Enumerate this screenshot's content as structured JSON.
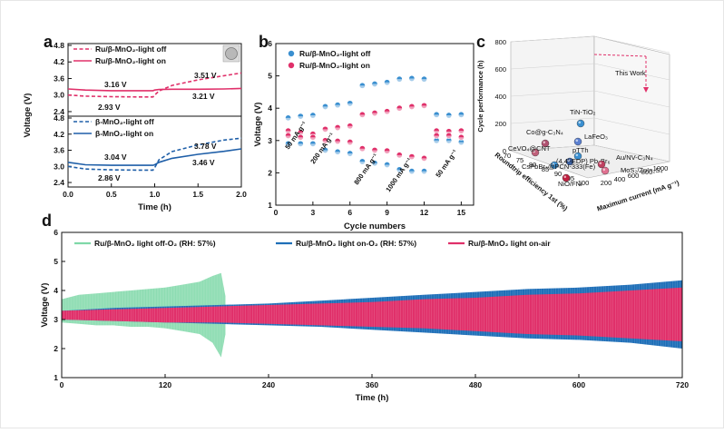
{
  "chart_data": [
    {
      "type": "line",
      "panel": "a",
      "xlabel": "Time (h)",
      "ylabel": "Voltage (V)",
      "xlim": [
        0.0,
        2.0
      ],
      "xticks": [
        "0.0",
        "0.5",
        "1.0",
        "1.5",
        "2.0"
      ],
      "subplots": [
        {
          "ylim": [
            2.3,
            4.8
          ],
          "yticks": [
            "2.4",
            "3.0",
            "3.6",
            "4.2",
            "4.8"
          ],
          "series": [
            {
              "name": "Ru/β-MnO₂-light off",
              "style": "dashed",
              "color": "#e0306a",
              "x": [
                0.0,
                0.2,
                0.5,
                0.8,
                0.98,
                1.0,
                1.05,
                1.2,
                1.5,
                1.8,
                2.0
              ],
              "y": [
                3.0,
                2.96,
                2.94,
                2.93,
                2.93,
                3.0,
                3.15,
                3.35,
                3.55,
                3.7,
                3.8
              ]
            },
            {
              "name": "Ru/β-MnO₂-light on",
              "style": "solid",
              "color": "#e0306a",
              "x": [
                0.0,
                0.2,
                0.5,
                0.8,
                0.98,
                1.0,
                1.05,
                1.2,
                1.5,
                1.8,
                2.0
              ],
              "y": [
                3.22,
                3.18,
                3.16,
                3.16,
                3.16,
                3.18,
                3.2,
                3.21,
                3.21,
                3.22,
                3.24
              ]
            }
          ],
          "annotations": [
            "3.16 V",
            "2.93 V",
            "3.51 V",
            "3.21 V"
          ]
        },
        {
          "ylim": [
            2.3,
            4.8
          ],
          "yticks": [
            "2.4",
            "3.0",
            "3.6",
            "4.2",
            "4.8"
          ],
          "series": [
            {
              "name": "β-MnO₂-light off",
              "style": "dashed",
              "color": "#1f5fa8",
              "x": [
                0.0,
                0.2,
                0.5,
                0.8,
                0.98,
                1.0,
                1.05,
                1.2,
                1.5,
                1.8,
                2.0
              ],
              "y": [
                3.0,
                2.9,
                2.87,
                2.86,
                2.86,
                2.95,
                3.25,
                3.55,
                3.8,
                3.98,
                4.05
              ]
            },
            {
              "name": "β-MnO₂-light on",
              "style": "solid",
              "color": "#1f5fa8",
              "x": [
                0.0,
                0.2,
                0.5,
                0.8,
                0.98,
                1.0,
                1.05,
                1.2,
                1.5,
                1.8,
                2.0
              ],
              "y": [
                3.15,
                3.06,
                3.04,
                3.04,
                3.04,
                3.06,
                3.15,
                3.3,
                3.45,
                3.56,
                3.65
              ]
            }
          ],
          "annotations": [
            "3.04 V",
            "2.86 V",
            "3.78 V",
            "3.46 V"
          ]
        }
      ]
    },
    {
      "type": "scatter",
      "panel": "b",
      "xlabel": "Cycle numbers",
      "ylabel": "Voltage (V)",
      "xlim": [
        0,
        16
      ],
      "ylim": [
        1,
        6
      ],
      "xticks": [
        "0",
        "3",
        "6",
        "9",
        "12",
        "15"
      ],
      "yticks": [
        "1",
        "2",
        "3",
        "4",
        "5",
        "6"
      ],
      "rate_labels": [
        "50 mA g⁻¹",
        "200 mA g⁻¹",
        "800 mA g⁻¹",
        "1000 mA g⁻¹",
        "50 mA g⁻¹"
      ],
      "series": [
        {
          "name": "Ru/β-MnO₂-light  off",
          "color": "#3a8fd0",
          "x": [
            1,
            2,
            3,
            4,
            5,
            6,
            7,
            8,
            9,
            10,
            11,
            12,
            13,
            14,
            15,
            1,
            2,
            3,
            4,
            5,
            6,
            7,
            8,
            9,
            10,
            11,
            12,
            13,
            14,
            15
          ],
          "y": [
            3.7,
            3.75,
            3.78,
            4.05,
            4.1,
            4.15,
            4.7,
            4.75,
            4.8,
            4.9,
            4.92,
            4.9,
            3.8,
            3.78,
            3.8,
            2.9,
            2.9,
            2.9,
            2.7,
            2.65,
            2.6,
            2.35,
            2.3,
            2.25,
            2.1,
            2.05,
            2.05,
            3.0,
            3.0,
            2.95
          ]
        },
        {
          "name": "Ru/β-MnO₂-light  on",
          "color": "#e0306a",
          "x": [
            1,
            2,
            3,
            4,
            5,
            6,
            7,
            8,
            9,
            10,
            11,
            12,
            13,
            14,
            15,
            1,
            2,
            3,
            4,
            5,
            6,
            7,
            8,
            9,
            10,
            11,
            12,
            13,
            14,
            15
          ],
          "y": [
            3.3,
            3.25,
            3.2,
            3.35,
            3.4,
            3.45,
            3.8,
            3.85,
            3.9,
            4.0,
            4.05,
            4.08,
            3.3,
            3.28,
            3.3,
            3.15,
            3.1,
            3.1,
            3.0,
            2.98,
            2.95,
            2.75,
            2.7,
            2.68,
            2.55,
            2.5,
            2.45,
            3.15,
            3.15,
            3.1
          ]
        }
      ]
    },
    {
      "type": "scatter",
      "panel": "c",
      "subtype": "3d",
      "xlabel": "Roundtrip efficiency 1st (%)",
      "ylabel": "Maximum current (mA g⁻¹)",
      "zlabel": "Cycle performance (h)",
      "zlim": [
        0,
        800
      ],
      "zticks": [
        "0",
        "200",
        "400",
        "600",
        "800"
      ],
      "xticks": [
        "70",
        "75",
        "80",
        "85",
        "90",
        "95",
        "100"
      ],
      "yticks": [
        "200",
        "400",
        "600",
        "800",
        "1000"
      ],
      "points": [
        {
          "label": "This Work",
          "color": "#e0306a"
        },
        {
          "label": "TiN-TiO₂",
          "color": "#3a8fd0"
        },
        {
          "label": "Co@g-C₃N₄",
          "color": "#b05070"
        },
        {
          "label": "LaFeO₃",
          "color": "#5a7fd0"
        },
        {
          "label": "CeVO₄@CNT",
          "color": "#c0607a"
        },
        {
          "label": "pTTh",
          "color": "#3a8fd0"
        },
        {
          "label": "(4,4'-EDP) Pb₂Br₆",
          "color": "#3a5fa0"
        },
        {
          "label": "CsPbBr₃@PCN-333(Fe)",
          "color": "#3a8fd0"
        },
        {
          "label": "Au/NV-C₃N₄",
          "color": "#c04060"
        },
        {
          "label": "MoS₂/ZnIn₂S₄",
          "color": "#e07090"
        },
        {
          "label": "NiO/FNi",
          "color": "#c02040"
        }
      ]
    },
    {
      "type": "area",
      "panel": "d",
      "xlabel": "Time (h)",
      "ylabel": "Voltage (V)",
      "xlim": [
        0,
        720
      ],
      "ylim": [
        1,
        6
      ],
      "xticks": [
        "0",
        "120",
        "240",
        "360",
        "480",
        "600",
        "720"
      ],
      "yticks": [
        "1",
        "2",
        "3",
        "4",
        "5",
        "6"
      ],
      "series": [
        {
          "name": "Ru/β-MnO₂ light off-O₂ (RH: 57%)",
          "color": "#7fd8a8",
          "x": [
            0,
            20,
            40,
            60,
            80,
            100,
            120,
            140,
            160,
            175,
            185,
            190
          ],
          "upper": [
            3.7,
            3.85,
            3.9,
            3.95,
            4.0,
            4.05,
            4.1,
            4.2,
            4.3,
            4.5,
            4.6,
            3.8
          ],
          "lower": [
            2.9,
            2.85,
            2.8,
            2.8,
            2.75,
            2.75,
            2.7,
            2.6,
            2.5,
            2.2,
            1.7,
            2.5
          ]
        },
        {
          "name": "Ru/β-MnO₂ light on-O₂ (RH: 57%)",
          "color": "#1f6fb8",
          "x": [
            0,
            60,
            120,
            180,
            240,
            300,
            360,
            420,
            480,
            540,
            600,
            660,
            720
          ],
          "upper": [
            3.3,
            3.4,
            3.45,
            3.5,
            3.55,
            3.65,
            3.75,
            3.85,
            3.95,
            4.05,
            4.1,
            4.2,
            4.35
          ],
          "lower": [
            3.0,
            2.95,
            2.9,
            2.85,
            2.8,
            2.75,
            2.65,
            2.55,
            2.45,
            2.35,
            2.3,
            2.2,
            2.0
          ]
        },
        {
          "name": "Ru/β-MnO₂ light on-air",
          "color": "#e0306a",
          "x": [
            0,
            60,
            120,
            180,
            240,
            300,
            360,
            420,
            480,
            540,
            600,
            660,
            720
          ],
          "upper": [
            3.3,
            3.35,
            3.4,
            3.45,
            3.5,
            3.55,
            3.6,
            3.7,
            3.75,
            3.85,
            3.9,
            4.0,
            4.1
          ],
          "lower": [
            3.0,
            2.95,
            2.9,
            2.9,
            2.85,
            2.8,
            2.75,
            2.7,
            2.6,
            2.5,
            2.45,
            2.35,
            2.25
          ]
        }
      ]
    }
  ],
  "panel_letters": [
    "a",
    "b",
    "c",
    "d"
  ],
  "colors": {
    "pink": "#e0306a",
    "blue": "#1f5fa8",
    "lightblue": "#3a8fd0",
    "green": "#7fd8a8"
  }
}
